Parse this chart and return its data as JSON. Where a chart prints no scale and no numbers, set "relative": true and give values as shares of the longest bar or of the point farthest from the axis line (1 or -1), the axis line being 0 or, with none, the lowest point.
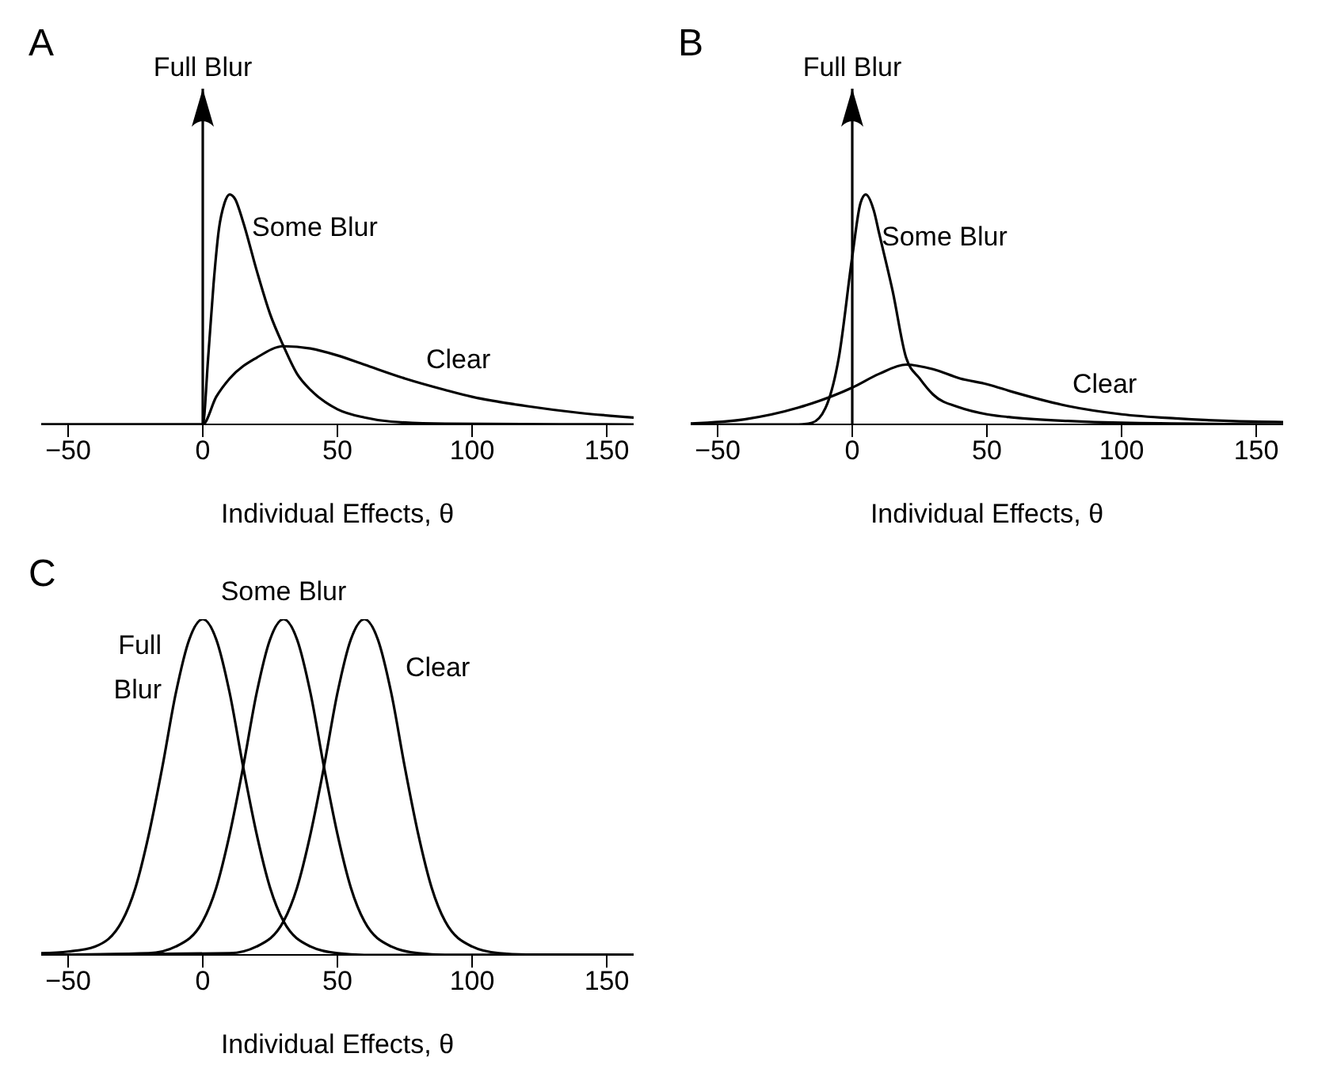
{
  "chart_data": [
    {
      "type": "line",
      "title": "A",
      "xlabel": "Individual Effects, θ",
      "xlim": [
        -60,
        160
      ],
      "xticks": [
        -50,
        0,
        50,
        100,
        150
      ],
      "relative": true,
      "ref_lines": [
        {
          "axis": "x",
          "value": 0,
          "label": "Full Blur",
          "color": "#000000"
        }
      ],
      "series": [
        {
          "name": "Some Blur",
          "color": "#000000",
          "x": [
            -60,
            0,
            2,
            4,
            6,
            8,
            10,
            12,
            15,
            20,
            25,
            30,
            35,
            40,
            50,
            60,
            70,
            90,
            160
          ],
          "values": [
            0,
            0,
            0.29,
            0.61,
            0.85,
            0.96,
            1,
            0.98,
            0.88,
            0.67,
            0.48,
            0.34,
            0.22,
            0.15,
            0.066,
            0.03,
            0.012,
            0.003,
            0
          ]
        },
        {
          "name": "Clear",
          "color": "#000000",
          "x": [
            -60,
            0,
            5,
            10,
            20,
            30,
            40,
            50,
            60,
            75,
            90,
            100,
            120,
            140,
            160
          ],
          "values": [
            0,
            0,
            0.12,
            0.2,
            0.29,
            0.34,
            0.33,
            0.3,
            0.26,
            0.2,
            0.15,
            0.12,
            0.08,
            0.05,
            0.03
          ]
        }
      ]
    },
    {
      "type": "line",
      "title": "B",
      "xlabel": "Individual Effects, θ",
      "xlim": [
        -60,
        160
      ],
      "xticks": [
        -50,
        0,
        50,
        100,
        150
      ],
      "relative": true,
      "ref_lines": [
        {
          "axis": "x",
          "value": 0,
          "label": "Full Blur",
          "color": "#000000"
        }
      ],
      "series": [
        {
          "name": "Some Blur",
          "color": "#000000",
          "x": [
            -60,
            -20,
            -15,
            -10,
            -5,
            0,
            3,
            5,
            8,
            10,
            15,
            20,
            25,
            30,
            40,
            50,
            60,
            80,
            100,
            160
          ],
          "values": [
            0,
            0,
            0.007,
            0.07,
            0.29,
            0.73,
            0.96,
            1,
            0.93,
            0.83,
            0.58,
            0.29,
            0.2,
            0.13,
            0.073,
            0.044,
            0.03,
            0.015,
            0.007,
            0
          ]
        },
        {
          "name": "Clear",
          "color": "#000000",
          "x": [
            -60,
            -40,
            -20,
            0,
            10,
            20,
            30,
            40,
            50,
            60,
            80,
            100,
            120,
            140,
            160
          ],
          "values": [
            0.004,
            0.022,
            0.073,
            0.16,
            0.22,
            0.26,
            0.24,
            0.2,
            0.175,
            0.14,
            0.08,
            0.044,
            0.026,
            0.015,
            0.01
          ]
        }
      ]
    },
    {
      "type": "line",
      "title": "C",
      "xlabel": "Individual Effects, θ",
      "xlim": [
        -60,
        160
      ],
      "xticks": [
        -50,
        0,
        50,
        100,
        150
      ],
      "relative": true,
      "series": [
        {
          "name": "Full Blur",
          "color": "#000000",
          "x": [
            -60,
            -50,
            -40,
            -30,
            -25,
            -20,
            -15,
            -10,
            -5,
            0,
            5,
            10,
            15,
            20,
            25,
            30,
            40,
            50,
            60,
            160
          ],
          "values": [
            0.005,
            0.01,
            0.025,
            0.1,
            0.2,
            0.36,
            0.56,
            0.78,
            0.94,
            1,
            0.94,
            0.78,
            0.56,
            0.36,
            0.2,
            0.1,
            0.025,
            0.005,
            0,
            0
          ]
        },
        {
          "name": "Some Blur",
          "color": "#000000",
          "x": [
            -60,
            -20,
            -10,
            0,
            5,
            10,
            15,
            20,
            25,
            30,
            35,
            40,
            45,
            50,
            55,
            60,
            70,
            80,
            90,
            160
          ],
          "values": [
            0,
            0.005,
            0.025,
            0.1,
            0.2,
            0.36,
            0.56,
            0.78,
            0.94,
            1,
            0.94,
            0.78,
            0.56,
            0.36,
            0.2,
            0.1,
            0.025,
            0.005,
            0,
            0
          ]
        },
        {
          "name": "Clear",
          "color": "#000000",
          "x": [
            -60,
            10,
            20,
            30,
            35,
            40,
            45,
            50,
            55,
            60,
            65,
            70,
            75,
            80,
            85,
            90,
            100,
            110,
            120,
            160
          ],
          "values": [
            0,
            0.005,
            0.025,
            0.1,
            0.2,
            0.36,
            0.56,
            0.78,
            0.94,
            1,
            0.94,
            0.78,
            0.56,
            0.36,
            0.2,
            0.1,
            0.025,
            0.005,
            0.001,
            0
          ]
        }
      ]
    }
  ]
}
